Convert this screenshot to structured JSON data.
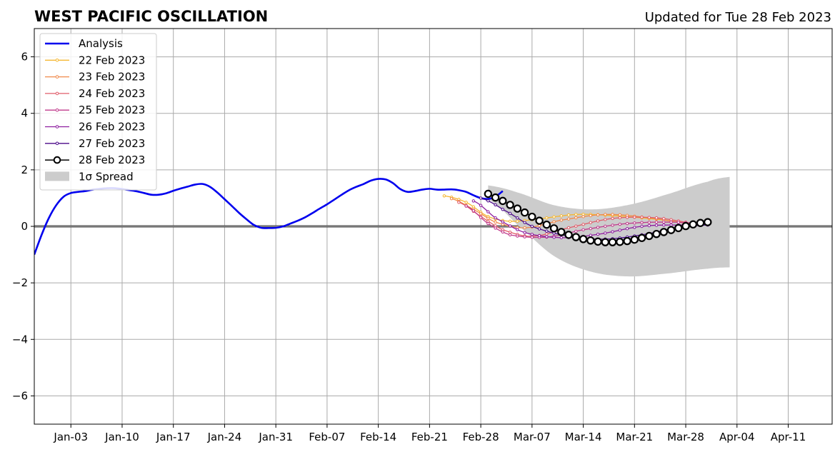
{
  "title": "WEST PACIFIC OSCILLATION",
  "subtitle": "Updated for Tue 28 Feb 2023",
  "chart_data": {
    "type": "line",
    "xlabel": "",
    "ylabel": "",
    "xlim": [
      "2022-12-29",
      "2023-04-17"
    ],
    "ylim": [
      -7,
      7
    ],
    "grid": true,
    "legend_position": "top-left",
    "yticks": [
      -6,
      -4,
      -2,
      0,
      2,
      4,
      6
    ],
    "ytick_labels": [
      "−6",
      "−4",
      "−2",
      "0",
      "2",
      "4",
      "6"
    ],
    "xticks": [
      "2023-01-03",
      "2023-01-10",
      "2023-01-17",
      "2023-01-24",
      "2023-01-31",
      "2023-02-07",
      "2023-02-14",
      "2023-02-21",
      "2023-02-28",
      "2023-03-07",
      "2023-03-14",
      "2023-03-21",
      "2023-03-28",
      "2023-04-04",
      "2023-04-11"
    ],
    "xtick_labels": [
      "Jan-03",
      "Jan-10",
      "Jan-17",
      "Jan-24",
      "Jan-31",
      "Feb-07",
      "Feb-14",
      "Feb-21",
      "Feb-28",
      "Mar-07",
      "Mar-14",
      "Mar-21",
      "Mar-28",
      "Apr-04",
      "Apr-11"
    ],
    "analysis": {
      "name": "Analysis",
      "color": "#0000ee",
      "start": "2022-12-29",
      "values": [
        -1.0,
        -0.3,
        0.3,
        0.75,
        1.05,
        1.18,
        1.22,
        1.25,
        1.3,
        1.33,
        1.35,
        1.35,
        1.32,
        1.28,
        1.24,
        1.18,
        1.12,
        1.12,
        1.17,
        1.26,
        1.34,
        1.41,
        1.48,
        1.5,
        1.4,
        1.2,
        0.96,
        0.72,
        0.47,
        0.25,
        0.05,
        -0.05,
        -0.06,
        -0.05,
        0.0,
        0.1,
        0.2,
        0.32,
        0.47,
        0.63,
        0.78,
        0.95,
        1.12,
        1.28,
        1.4,
        1.5,
        1.62,
        1.68,
        1.66,
        1.53,
        1.32,
        1.22,
        1.25,
        1.3,
        1.33,
        1.3,
        1.3,
        1.31,
        1.28,
        1.22,
        1.1,
        1.0,
        0.97,
        1.05,
        1.25
      ]
    },
    "spread": {
      "name": "1σ Spread",
      "color": "#cccccc",
      "x": [
        "2023-03-01",
        "2023-03-05",
        "2023-03-10",
        "2023-03-15",
        "2023-03-20",
        "2023-03-25",
        "2023-03-31",
        "2023-04-03"
      ],
      "upper": [
        1.45,
        1.2,
        0.75,
        0.6,
        0.75,
        1.1,
        1.58,
        1.75
      ],
      "lower": [
        0.95,
        0.05,
        -1.05,
        -1.6,
        -1.77,
        -1.68,
        -1.5,
        -1.45
      ]
    },
    "forecasts": [
      {
        "name": "22 Feb 2023",
        "color": "#f5b731",
        "x": [
          "2023-02-23",
          "2023-02-26",
          "2023-03-01",
          "2023-03-04",
          "2023-03-08",
          "2023-03-13",
          "2023-03-18",
          "2023-03-24",
          "2023-03-30"
        ],
        "values": [
          1.08,
          0.85,
          0.35,
          0.18,
          0.27,
          0.42,
          0.38,
          0.25,
          0.08
        ]
      },
      {
        "name": "23 Feb 2023",
        "color": "#f0894a",
        "x": [
          "2023-02-24",
          "2023-02-27",
          "2023-03-02",
          "2023-03-06",
          "2023-03-11",
          "2023-03-17",
          "2023-03-23",
          "2023-03-30"
        ],
        "values": [
          0.98,
          0.6,
          0.15,
          -0.05,
          0.22,
          0.42,
          0.3,
          0.05
        ]
      },
      {
        "name": "24 Feb 2023",
        "color": "#e05c6a",
        "x": [
          "2023-02-25",
          "2023-02-28",
          "2023-03-03",
          "2023-03-07",
          "2023-03-12",
          "2023-03-18",
          "2023-03-24",
          "2023-03-30"
        ],
        "values": [
          0.85,
          0.35,
          -0.12,
          -0.35,
          -0.05,
          0.28,
          0.3,
          0.08
        ]
      },
      {
        "name": "25 Feb 2023",
        "color": "#c03a8c",
        "x": [
          "2023-02-26",
          "2023-03-01",
          "2023-03-04",
          "2023-03-09",
          "2023-03-14",
          "2023-03-20",
          "2023-03-26",
          "2023-03-31"
        ],
        "values": [
          0.72,
          0.1,
          -0.3,
          -0.38,
          -0.12,
          0.1,
          0.15,
          0.08
        ]
      },
      {
        "name": "26 Feb 2023",
        "color": "#8e1ea0",
        "x": [
          "2023-02-27",
          "2023-03-02",
          "2023-03-06",
          "2023-03-11",
          "2023-03-16",
          "2023-03-22",
          "2023-03-27",
          "2023-03-31"
        ],
        "values": [
          0.9,
          0.3,
          -0.22,
          -0.4,
          -0.28,
          0.0,
          0.05,
          0.05
        ]
      },
      {
        "name": "27 Feb 2023",
        "color": "#4b0a8a",
        "x": [
          "2023-02-28",
          "2023-03-03",
          "2023-03-07",
          "2023-03-12",
          "2023-03-17",
          "2023-03-22",
          "2023-03-27",
          "2023-03-31"
        ],
        "values": [
          1.0,
          0.6,
          0.0,
          -0.35,
          -0.45,
          -0.3,
          -0.05,
          0.05
        ]
      },
      {
        "name": "28 Feb 2023",
        "color": "#000000",
        "start": "2023-03-01",
        "values": [
          1.15,
          1.02,
          0.9,
          0.76,
          0.63,
          0.49,
          0.34,
          0.2,
          0.06,
          -0.07,
          -0.2,
          -0.3,
          -0.38,
          -0.45,
          -0.5,
          -0.54,
          -0.56,
          -0.56,
          -0.55,
          -0.52,
          -0.47,
          -0.41,
          -0.34,
          -0.27,
          -0.2,
          -0.13,
          -0.06,
          0.01,
          0.07,
          0.12,
          0.15
        ]
      }
    ]
  }
}
